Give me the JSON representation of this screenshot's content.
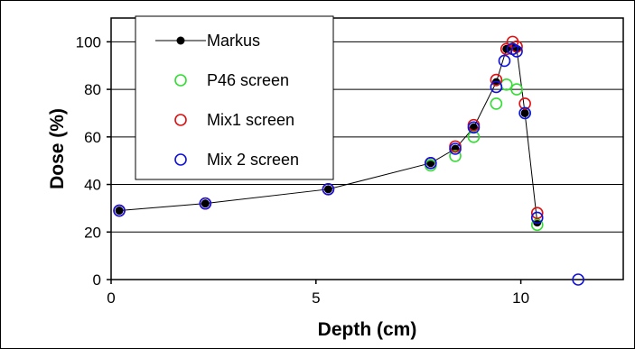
{
  "chart_data": {
    "type": "scatter",
    "xlabel": "Depth (cm)",
    "ylabel": "Dose (%)",
    "xlim": [
      0,
      12.5
    ],
    "ylim": [
      0,
      110
    ],
    "xticks": [
      0,
      5,
      10
    ],
    "yticks": [
      0,
      20,
      40,
      60,
      80,
      100
    ],
    "grid": "horizontal",
    "legend_position": "top-left",
    "series": [
      {
        "name": "Markus",
        "style": "line-marker",
        "color": "#000000",
        "x": [
          0.2,
          2.3,
          5.3,
          7.8,
          8.4,
          8.85,
          9.4,
          9.65,
          9.8,
          9.9,
          10.1,
          10.4
        ],
        "y": [
          29,
          32,
          38,
          49,
          55,
          64,
          83,
          97,
          98,
          97,
          70,
          24
        ]
      },
      {
        "name": "P46 screen",
        "style": "open-circle",
        "color": "#33dd33",
        "x": [
          7.8,
          8.4,
          8.85,
          9.4,
          9.65,
          9.9,
          10.1,
          10.4
        ],
        "y": [
          48,
          52,
          60,
          74,
          82,
          80,
          70,
          23
        ]
      },
      {
        "name": "Mix1 screen",
        "style": "open-circle",
        "color": "#dd1111",
        "x": [
          0.2,
          2.3,
          5.3,
          7.8,
          8.4,
          8.85,
          9.4,
          9.65,
          9.8,
          9.9,
          10.1,
          10.4
        ],
        "y": [
          29,
          32,
          38,
          49,
          56,
          65,
          84,
          97,
          100,
          98,
          74,
          28
        ]
      },
      {
        "name": "Mix 2 screen",
        "style": "open-circle",
        "color": "#1111dd",
        "x": [
          0.2,
          2.3,
          5.3,
          7.8,
          8.4,
          8.85,
          9.4,
          9.6,
          9.8,
          9.9,
          10.1,
          10.4,
          11.4
        ],
        "y": [
          29,
          32,
          38,
          49,
          55,
          64,
          81,
          92,
          97,
          96,
          70,
          26,
          0
        ]
      }
    ]
  }
}
